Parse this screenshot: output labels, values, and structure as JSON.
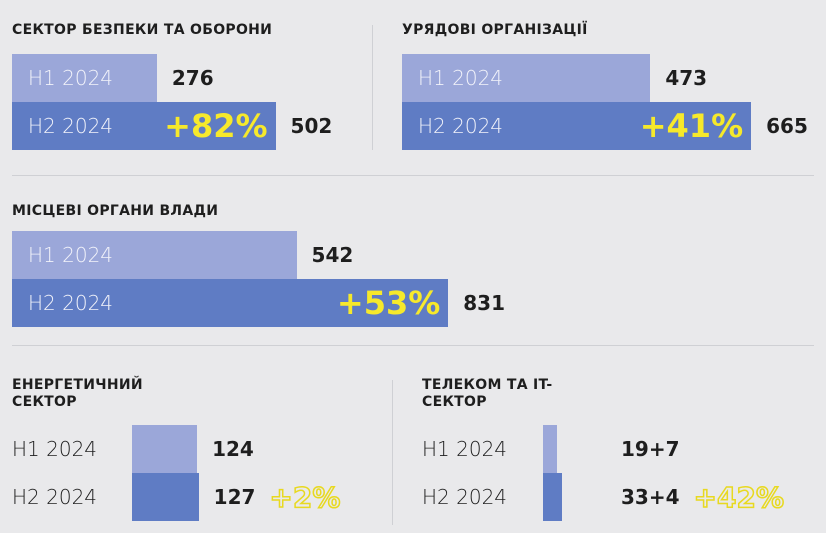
{
  "chart_data": [
    {
      "type": "bar",
      "title": "СЕКТОР БЕЗПЕКИ ТА ОБОРОНИ",
      "categories": [
        "H1 2024",
        "H2 2024"
      ],
      "values": [
        276,
        502
      ],
      "colors": [
        "#9ba7d9",
        "#5f7cc4"
      ],
      "annotation": "+82%"
    },
    {
      "type": "bar",
      "title": "УРЯДОВІ ОРГАНІЗАЦІЇ",
      "categories": [
        "H1 2024",
        "H2 2024"
      ],
      "values": [
        473,
        665
      ],
      "colors": [
        "#9ba7d9",
        "#5f7cc4"
      ],
      "annotation": "+41%"
    },
    {
      "type": "bar",
      "title": "МІСЦЕВІ ОРГАНИ ВЛАДИ",
      "categories": [
        "H1 2024",
        "H2 2024"
      ],
      "values": [
        542,
        831
      ],
      "colors": [
        "#9ba7d9",
        "#5f7cc4"
      ],
      "annotation": "+53%"
    },
    {
      "type": "bar",
      "title": "ЕНЕРГЕТИЧНИЙ СЕКТОР",
      "categories": [
        "H1 2024",
        "H2 2024"
      ],
      "values": [
        124,
        127
      ],
      "colors": [
        "#9ba7d9",
        "#5f7cc4"
      ],
      "annotation": "+2%"
    },
    {
      "type": "bar",
      "title": "ТЕЛЕКОМ ТА IT-СЕКТОР",
      "categories": [
        "H1 2024",
        "H2 2024"
      ],
      "values": [
        26,
        37
      ],
      "value_labels": [
        "19+7",
        "33+4"
      ],
      "colors": [
        "#9ba7d9",
        "#5f7cc4"
      ],
      "annotation": "+42%"
    }
  ]
}
